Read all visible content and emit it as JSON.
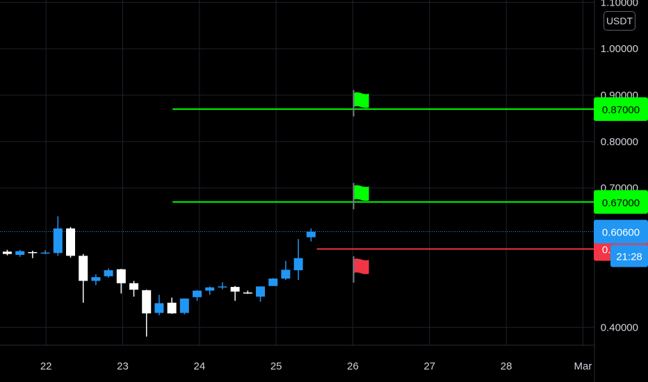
{
  "currency_badge": "USDT",
  "chart_data": {
    "type": "candlestick",
    "title": "",
    "ylim": [
      0.3615,
      1.105
    ],
    "y_ticks": [
      {
        "value": 1.1,
        "label": "1.10000"
      },
      {
        "value": 1.0,
        "label": "1.00000"
      },
      {
        "value": 0.9,
        "label": "0.90000"
      },
      {
        "value": 0.8,
        "label": "0.80000"
      },
      {
        "value": 0.7,
        "label": "0.70000"
      },
      {
        "value": 0.4,
        "label": "0.40000"
      }
    ],
    "x_range": [
      21.4,
      29.15
    ],
    "x_ticks": [
      {
        "value": 22,
        "label": "22"
      },
      {
        "value": 23,
        "label": "23"
      },
      {
        "value": 24,
        "label": "24"
      },
      {
        "value": 25,
        "label": "25"
      },
      {
        "value": 26,
        "label": "26"
      },
      {
        "value": 27,
        "label": "27"
      },
      {
        "value": 28,
        "label": "28"
      },
      {
        "value": 29,
        "label": "Mar"
      }
    ],
    "grid": true,
    "candles": [
      {
        "t": 21.495,
        "o": 0.563,
        "h": 0.567,
        "l": 0.555,
        "c": 0.558
      },
      {
        "t": 21.66,
        "o": 0.556,
        "h": 0.567,
        "l": 0.552,
        "c": 0.564
      },
      {
        "t": 21.825,
        "o": 0.562,
        "h": 0.565,
        "l": 0.549,
        "c": 0.56
      },
      {
        "t": 21.99,
        "o": 0.56,
        "h": 0.566,
        "l": 0.558,
        "c": 0.561
      },
      {
        "t": 22.155,
        "o": 0.56,
        "h": 0.639,
        "l": 0.554,
        "c": 0.613
      },
      {
        "t": 22.32,
        "o": 0.613,
        "h": 0.616,
        "l": 0.55,
        "c": 0.554
      },
      {
        "t": 22.485,
        "o": 0.554,
        "h": 0.558,
        "l": 0.453,
        "c": 0.5
      },
      {
        "t": 22.65,
        "o": 0.5,
        "h": 0.514,
        "l": 0.491,
        "c": 0.508
      },
      {
        "t": 22.815,
        "o": 0.51,
        "h": 0.527,
        "l": 0.507,
        "c": 0.523
      },
      {
        "t": 22.98,
        "o": 0.525,
        "h": 0.526,
        "l": 0.473,
        "c": 0.495
      },
      {
        "t": 23.145,
        "o": 0.495,
        "h": 0.5,
        "l": 0.466,
        "c": 0.481
      },
      {
        "t": 23.31,
        "o": 0.48,
        "h": 0.481,
        "l": 0.38,
        "c": 0.43
      },
      {
        "t": 23.475,
        "o": 0.431,
        "h": 0.47,
        "l": 0.426,
        "c": 0.452
      },
      {
        "t": 23.64,
        "o": 0.453,
        "h": 0.464,
        "l": 0.429,
        "c": 0.43
      },
      {
        "t": 23.805,
        "o": 0.431,
        "h": 0.462,
        "l": 0.428,
        "c": 0.462
      },
      {
        "t": 23.97,
        "o": 0.465,
        "h": 0.48,
        "l": 0.457,
        "c": 0.479
      },
      {
        "t": 24.135,
        "o": 0.479,
        "h": 0.488,
        "l": 0.47,
        "c": 0.486
      },
      {
        "t": 24.3,
        "o": 0.486,
        "h": 0.497,
        "l": 0.482,
        "c": 0.488
      },
      {
        "t": 24.465,
        "o": 0.487,
        "h": 0.489,
        "l": 0.457,
        "c": 0.477
      },
      {
        "t": 24.63,
        "o": 0.475,
        "h": 0.479,
        "l": 0.472,
        "c": 0.473
      },
      {
        "t": 24.795,
        "o": 0.466,
        "h": 0.488,
        "l": 0.455,
        "c": 0.488
      },
      {
        "t": 24.96,
        "o": 0.489,
        "h": 0.506,
        "l": 0.489,
        "c": 0.505
      },
      {
        "t": 25.125,
        "o": 0.505,
        "h": 0.543,
        "l": 0.502,
        "c": 0.524
      },
      {
        "t": 25.29,
        "o": 0.523,
        "h": 0.59,
        "l": 0.502,
        "c": 0.549
      },
      {
        "t": 25.455,
        "o": 0.594,
        "h": 0.613,
        "l": 0.585,
        "c": 0.606
      }
    ],
    "horizontal_lines": [
      {
        "name": "take-profit-2",
        "value": 0.87,
        "label": "0.87000",
        "color": "#00ff00",
        "x_start": 23.65
      },
      {
        "name": "take-profit-1",
        "value": 0.67,
        "label": "0.67000",
        "color": "#00ff00",
        "x_start": 23.65
      },
      {
        "name": "stop-loss",
        "value": 0.56875,
        "label": "0.56875",
        "color": "#f23645",
        "x_start": 25.53
      }
    ],
    "last_price": {
      "value": 0.606,
      "label": "0.60600",
      "color": "#2196f3",
      "countdown": "21:28"
    },
    "flags": [
      {
        "name": "flag-green-upper",
        "x": 26.01,
        "y": 0.905,
        "color": "#00ff00"
      },
      {
        "name": "flag-green-lower",
        "x": 26.01,
        "y": 0.705,
        "color": "#00ff00"
      },
      {
        "name": "flag-red",
        "x": 26.01,
        "y": 0.547,
        "color": "#f23645"
      }
    ],
    "colors": {
      "up": "#2196f3",
      "down": "#ffffff",
      "grid": "#1e222d",
      "axis_text": "#d1d4dc"
    }
  }
}
